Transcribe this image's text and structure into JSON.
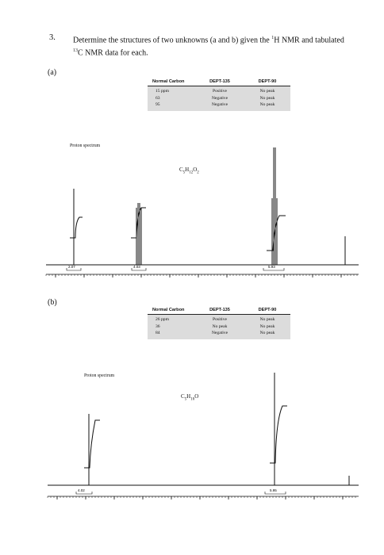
{
  "question": {
    "number": "3.",
    "text_before_h": "Determine the structures of two unknowns (a and b) given the ",
    "h_sup": "1",
    "text_mid": "H NMR and tabulated ",
    "c_sup": "13",
    "text_after": "C NMR data for each."
  },
  "parts": [
    {
      "label": "(a)",
      "table": {
        "headers": [
          "Normal Carbon",
          "DEPT-135",
          "DEPT-90"
        ],
        "rows": [
          [
            "15 ppm",
            "Positive",
            "No peak"
          ],
          [
            "63",
            "Negative",
            "No peak"
          ],
          [
            "95",
            "Negative",
            "No peak"
          ]
        ]
      },
      "spectrum_label": "Proton spectrum",
      "formula": {
        "c": "C",
        "c_sub": "5",
        "h": "H",
        "h_sub": "12",
        "o": "O",
        "o_sub": "2"
      },
      "integrations": [
        "2.07",
        "4.03",
        "5.93"
      ]
    },
    {
      "label": "(b)",
      "table": {
        "headers": [
          "Normal Carbon",
          "DEPT-135",
          "DEPT-90"
        ],
        "rows": [
          [
            "26 ppm",
            "Positive",
            "No peak"
          ],
          [
            "36",
            "No peak",
            "No peak"
          ],
          [
            "84",
            "Negative",
            "No peak"
          ]
        ]
      },
      "spectrum_label": "Proton spectrum",
      "formula": {
        "c": "C",
        "c_sub": "5",
        "h": "H",
        "h_sub": "10",
        "o": "O",
        "o_sub": ""
      },
      "integrations": [
        "4.02",
        "5.95"
      ]
    }
  ]
}
